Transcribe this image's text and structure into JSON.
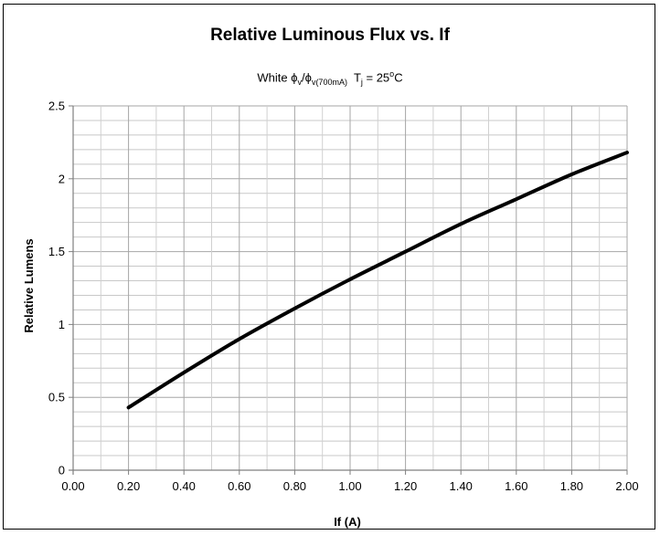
{
  "chart_data": {
    "type": "line",
    "title": "Relative Luminous Flux  vs. If",
    "subtitle": {
      "lead": "White ",
      "phi1": "ϕ",
      "sub1": "v",
      "slash": "/",
      "phi2": "ϕ",
      "sub2": "v(700mA)",
      "tj": "  T",
      "tj_sub": "j",
      "eq": " = 25",
      "deg": "o",
      "unit": "C"
    },
    "xlabel": "If (A)",
    "ylabel": "Relative Lumens",
    "xlim": [
      0,
      2
    ],
    "ylim": [
      0,
      2.5
    ],
    "x_ticks": [
      "0.00",
      "0.20",
      "0.40",
      "0.60",
      "0.80",
      "1.00",
      "1.20",
      "1.40",
      "1.60",
      "1.80",
      "2.00"
    ],
    "y_ticks": [
      "0",
      "0.5",
      "1",
      "1.5",
      "2",
      "2.5"
    ],
    "grid": true,
    "series": [
      {
        "x": [
          0.2,
          0.4,
          0.6,
          0.8,
          1.0,
          1.2,
          1.4,
          1.6,
          1.8,
          2.0
        ],
        "y": [
          0.43,
          0.67,
          0.9,
          1.11,
          1.31,
          1.5,
          1.69,
          1.86,
          2.03,
          2.18
        ]
      }
    ]
  }
}
